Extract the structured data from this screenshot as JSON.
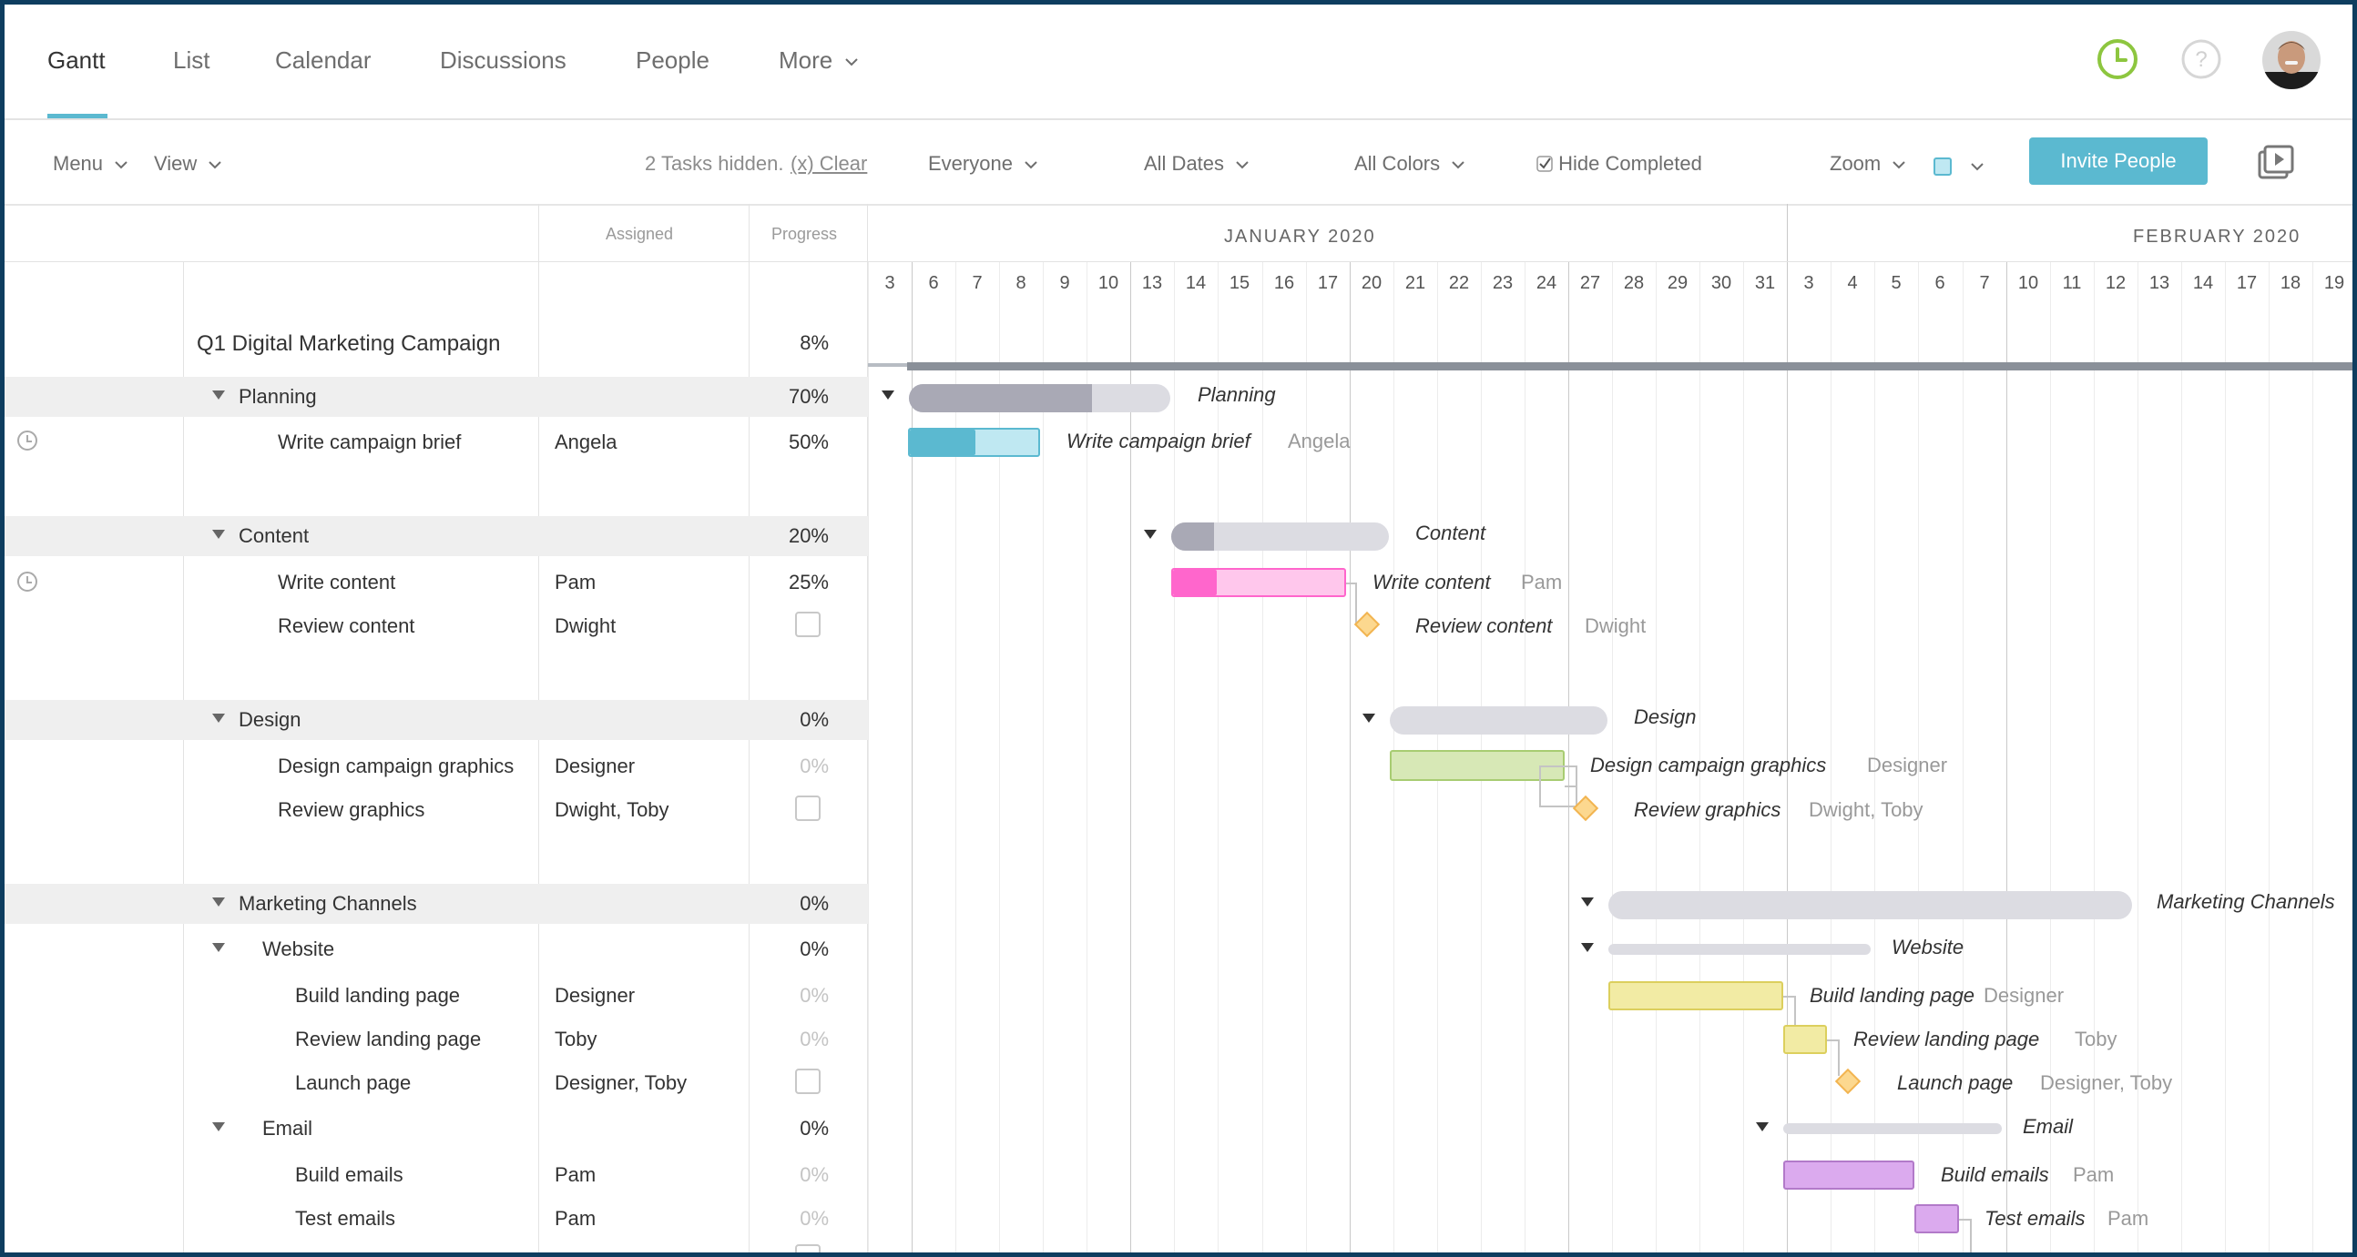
{
  "nav": {
    "tabs": [
      {
        "label": "Gantt",
        "active": true
      },
      {
        "label": "List"
      },
      {
        "label": "Calendar"
      },
      {
        "label": "Discussions"
      },
      {
        "label": "People"
      },
      {
        "label": "More"
      }
    ]
  },
  "toolbar": {
    "menu": "Menu",
    "view": "View",
    "hidden_text": "2 Tasks hidden.",
    "clear": "(x) Clear",
    "everyone": "Everyone",
    "all_dates": "All Dates",
    "all_colors": "All Colors",
    "hide_completed": "Hide Completed",
    "hide_completed_checked": true,
    "zoom": "Zoom",
    "invite": "Invite People"
  },
  "grid": {
    "header_assigned": "Assigned",
    "header_progress": "Progress",
    "project": {
      "name": "Q1 Digital Marketing Campaign",
      "progress": "8%"
    },
    "rows": [
      {
        "name": "Planning",
        "progress": "70%",
        "group": true
      },
      {
        "name": "Write campaign brief",
        "assigned": "Angela",
        "progress": "50%"
      },
      {
        "name": "Content",
        "progress": "20%",
        "group": true
      },
      {
        "name": "Write content",
        "assigned": "Pam",
        "progress": "25%"
      },
      {
        "name": "Review content",
        "assigned": "Dwight"
      },
      {
        "name": "Design",
        "progress": "0%",
        "group": true
      },
      {
        "name": "Design campaign graphics",
        "assigned": "Designer",
        "progress": "0%"
      },
      {
        "name": "Review graphics",
        "assigned": "Dwight, Toby"
      },
      {
        "name": "Marketing Channels",
        "progress": "0%",
        "group": true
      },
      {
        "name": "Website",
        "progress": "0%",
        "group": true
      },
      {
        "name": "Build landing page",
        "assigned": "Designer",
        "progress": "0%"
      },
      {
        "name": "Review landing page",
        "assigned": "Toby",
        "progress": "0%"
      },
      {
        "name": "Launch page",
        "assigned": "Designer, Toby"
      },
      {
        "name": "Email",
        "progress": "0%",
        "group": true
      },
      {
        "name": "Build emails",
        "assigned": "Pam",
        "progress": "0%"
      },
      {
        "name": "Test emails",
        "assigned": "Pam",
        "progress": "0%"
      }
    ]
  },
  "chart": {
    "months": [
      "JANUARY 2020",
      "FEBRUARY 2020"
    ],
    "days": [
      "3",
      "6",
      "7",
      "8",
      "9",
      "10",
      "13",
      "14",
      "15",
      "16",
      "17",
      "20",
      "21",
      "22",
      "23",
      "24",
      "27",
      "28",
      "29",
      "30",
      "31",
      "3",
      "4",
      "5",
      "6",
      "7",
      "10",
      "11",
      "12",
      "13",
      "14",
      "17",
      "18",
      "19"
    ],
    "labels": {
      "planning": "Planning",
      "brief": "Write campaign brief",
      "brief_assign": "Angela",
      "content": "Content",
      "write_content": "Write content",
      "write_content_assign": "Pam",
      "review_content": "Review content",
      "review_content_assign": "Dwight",
      "design": "Design",
      "graphics": "Design campaign graphics",
      "graphics_assign": "Designer",
      "review_graphics": "Review graphics",
      "review_graphics_assign": "Dwight, Toby",
      "channels": "Marketing Channels",
      "website": "Website",
      "landing": "Build landing page",
      "landing_assign": "Designer",
      "review_landing": "Review landing page",
      "review_landing_assign": "Toby",
      "launch": "Launch page",
      "launch_assign": "Designer, Toby",
      "email": "Email",
      "build_emails": "Build emails",
      "build_emails_assign": "Pam",
      "test_emails": "Test emails",
      "test_emails_assign": "Pam"
    },
    "colors": {
      "accent": "#5bb9d0",
      "planning_bar": "#5bb9d0",
      "content_bar": "#ff66cc",
      "design_bar": "#c6e0a0",
      "website_bar": "#ede59a",
      "email_bar": "#d8a8ec",
      "summary": "#dcdce2"
    }
  }
}
